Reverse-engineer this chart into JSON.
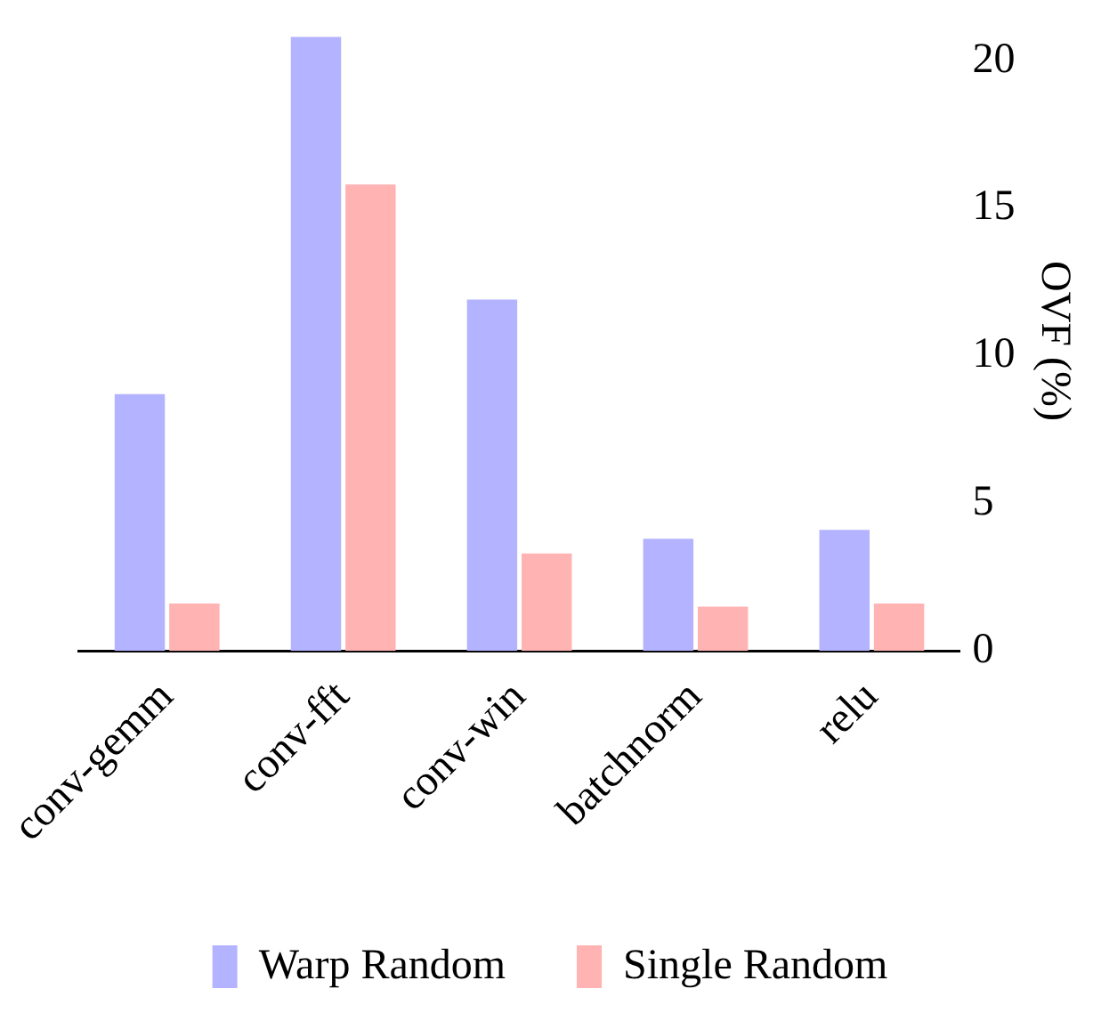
{
  "chart_data": {
    "type": "bar",
    "ylabel": "OVF (%)",
    "categories": [
      "conv-gemm",
      "conv-fft",
      "conv-win",
      "batchnorm",
      "relu"
    ],
    "series": [
      {
        "name": "Warp Random",
        "color": "#b3b3ff",
        "values": [
          8.7,
          20.8,
          11.9,
          3.8,
          4.1
        ]
      },
      {
        "name": "Single Random",
        "color": "#ffb3b3",
        "values": [
          1.6,
          15.8,
          3.3,
          1.5,
          1.6
        ]
      }
    ],
    "ylim": [
      0,
      21
    ],
    "yticks": [
      0,
      5,
      10,
      15,
      20
    ],
    "grid": false,
    "legend": "bottom"
  }
}
